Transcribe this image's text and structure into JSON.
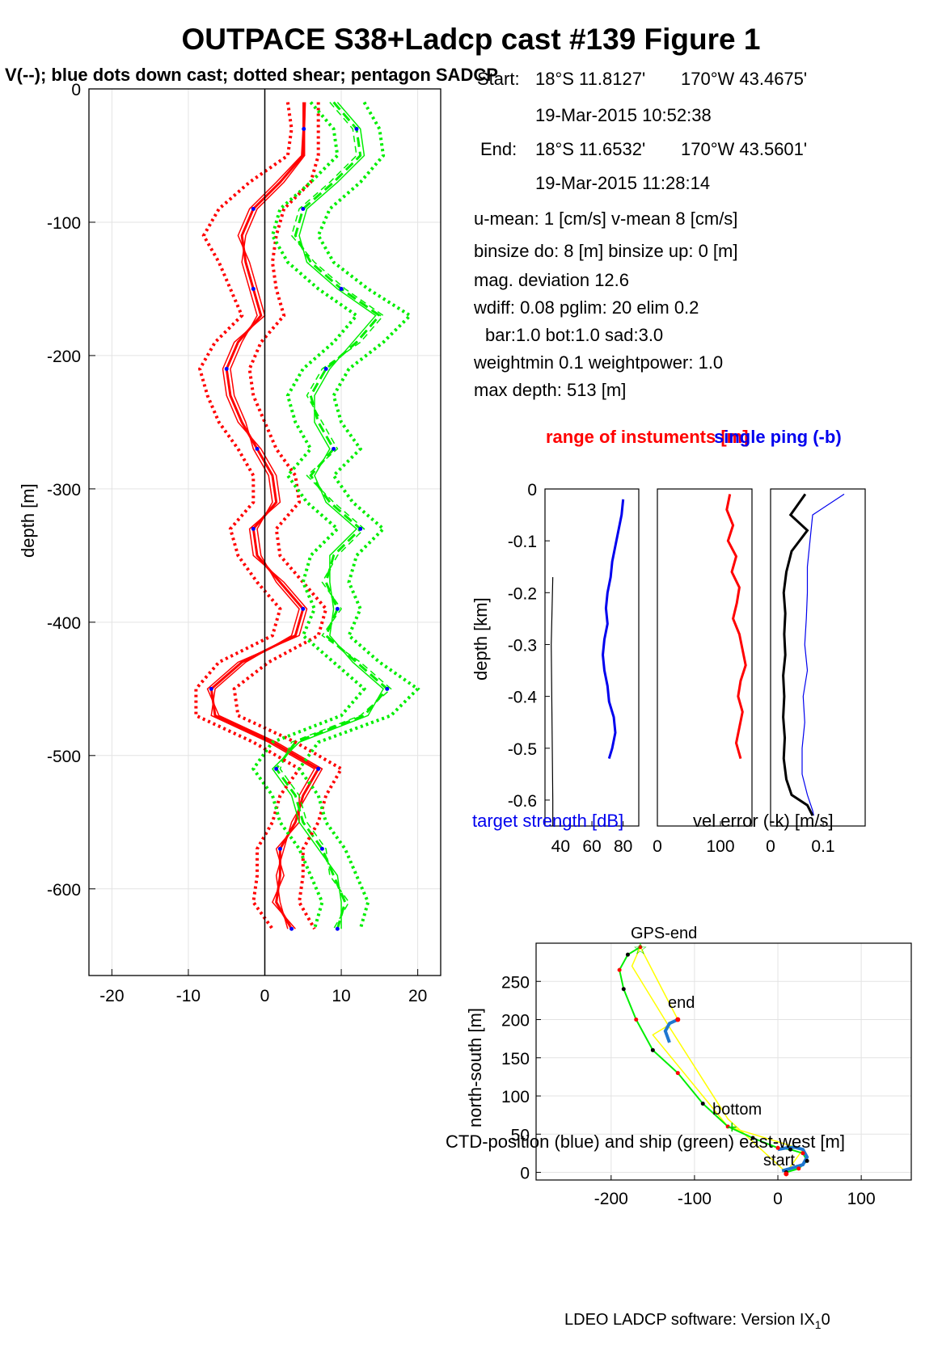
{
  "title": "OUTPACE S38+Ladcp cast #139  Figure 1",
  "subtitle": "V(--); blue dots down cast; dotted shear; pentagon SADCP",
  "info": {
    "start_label": "Start:",
    "start_lat": "18°S 11.8127'",
    "start_lon": "170°W 43.4675'",
    "start_time": "19-Mar-2015 10:52:38",
    "end_label": "End:",
    "end_lat": "18°S 11.6532'",
    "end_lon": "170°W 43.5601'",
    "end_time": "19-Mar-2015 11:28:14",
    "umean": "u-mean:   1 [cm/s]    v-mean   8 [cm/s]",
    "binsize": "binsize do: 8 [m]  binsize up:  0 [m]",
    "magdev": "mag. deviation 12.6",
    "wdiff": "wdiff: 0.08  pglim: 20  elim 0.2",
    "bar": "bar:1.0 bot:1.0 sad:3.0",
    "weight": "weightmin 0.1  weightpower: 1.0",
    "maxdepth": "max depth: 513 [m]"
  },
  "footer": "LDEO LADCP software: Version IX",
  "footer_sub": "1",
  "footer_tail": "0",
  "colors": {
    "u": "#ff0000",
    "v": "#00ee00",
    "dots": "#0000ff",
    "ts": "#0000ee",
    "range": "#ff0000",
    "gps": "#ffff00"
  },
  "chart_data": [
    {
      "type": "line",
      "ylabel": "depth [m]",
      "xlabel": "",
      "xlim": [
        -23,
        23
      ],
      "ylim": [
        -665,
        0
      ],
      "xticks": [
        "-20",
        "-10",
        "0",
        "10",
        "20"
      ],
      "yticks": [
        "0",
        "-100",
        "-200",
        "-300",
        "-400",
        "-500",
        "-600"
      ],
      "grid": true,
      "depth": [
        -10,
        -30,
        -50,
        -70,
        -90,
        -110,
        -130,
        -150,
        -170,
        -190,
        -210,
        -230,
        -250,
        -270,
        -290,
        -310,
        -330,
        -350,
        -370,
        -390,
        -410,
        -430,
        -450,
        -470,
        -490,
        -510,
        -530,
        -550,
        -570,
        -590,
        -610,
        -630
      ],
      "series": [
        {
          "values": [
            5.2,
            5.1,
            5.0,
            2.0,
            -1.5,
            -3.0,
            -2.5,
            -1.5,
            -0.5,
            -3.5,
            -5.0,
            -4.5,
            -3.0,
            -1.0,
            1.0,
            1.5,
            -1.5,
            -1.0,
            2.0,
            5.0,
            4.0,
            -3.0,
            -7.0,
            -6.5,
            1.0,
            7.0,
            5.0,
            4.0,
            2.0,
            2.0,
            1.5,
            3.5
          ]
        },
        {
          "values": [
            5.0,
            5.0,
            4.8,
            1.5,
            -2.0,
            -3.5,
            -2.0,
            -1.0,
            0.0,
            -4.0,
            -5.5,
            -5.0,
            -3.5,
            -0.5,
            1.5,
            2.0,
            -2.0,
            -1.5,
            2.5,
            5.5,
            4.5,
            -3.5,
            -7.5,
            -6.0,
            1.5,
            7.5,
            5.5,
            3.5,
            2.5,
            1.5,
            2.0,
            3.0
          ]
        },
        {
          "values": [
            5.3,
            5.2,
            5.2,
            2.5,
            -1.0,
            -2.5,
            -3.0,
            -2.0,
            -1.0,
            -3.0,
            -4.5,
            -4.0,
            -2.5,
            -1.5,
            0.5,
            1.0,
            -1.0,
            -0.5,
            1.5,
            4.5,
            3.5,
            -2.5,
            -6.5,
            -7.0,
            0.5,
            6.5,
            4.5,
            4.5,
            1.5,
            2.5,
            1.0,
            4.0
          ]
        },
        {
          "values": [
            9.0,
            12.0,
            12.5,
            9.0,
            5.0,
            4.0,
            6.0,
            10.0,
            15.0,
            12.0,
            8.0,
            6.0,
            7.0,
            9.0,
            6.0,
            8.5,
            12.5,
            9.0,
            8.0,
            9.5,
            8.0,
            12.0,
            16.0,
            13.0,
            4.0,
            1.5,
            4.0,
            5.0,
            7.5,
            9.0,
            10.5,
            9.5
          ]
        },
        {
          "values": [
            8.5,
            11.5,
            12.0,
            8.5,
            4.5,
            3.5,
            6.5,
            10.5,
            15.5,
            12.5,
            7.5,
            5.5,
            7.5,
            9.5,
            5.5,
            9.0,
            13.0,
            9.5,
            7.5,
            10.0,
            7.5,
            12.5,
            16.5,
            12.5,
            3.5,
            2.0,
            4.5,
            5.5,
            8.0,
            8.5,
            11.0,
            9.0
          ]
        },
        {
          "values": [
            9.5,
            12.5,
            13.0,
            9.5,
            5.5,
            4.5,
            5.5,
            9.5,
            14.5,
            11.5,
            8.5,
            6.5,
            6.5,
            8.5,
            6.5,
            8.0,
            12.0,
            8.5,
            8.5,
            9.0,
            8.5,
            11.5,
            15.5,
            13.5,
            4.5,
            1.0,
            3.5,
            4.5,
            7.0,
            9.5,
            10.0,
            10.0
          ]
        },
        {
          "values": [
            3.0,
            3.5,
            3.0,
            -2.0,
            -6.0,
            -8.0,
            -6.0,
            -4.5,
            -3.0,
            -6.5,
            -8.5,
            -7.5,
            -6.0,
            -3.5,
            -1.5,
            -1.5,
            -4.5,
            -3.5,
            -1.0,
            2.0,
            1.0,
            -6.0,
            -9.0,
            -9.0,
            -1.5,
            4.5,
            2.0,
            1.0,
            -1.0,
            -1.0,
            -1.5,
            1.0
          ]
        },
        {
          "values": [
            7.0,
            7.0,
            7.0,
            6.0,
            2.5,
            1.5,
            1.0,
            1.5,
            2.5,
            -0.5,
            -2.0,
            -1.5,
            0.0,
            1.5,
            4.0,
            4.5,
            1.5,
            2.0,
            5.0,
            8.0,
            7.0,
            0.5,
            -4.0,
            -3.5,
            4.0,
            10.0,
            8.0,
            7.0,
            5.0,
            5.0,
            4.5,
            6.5
          ]
        },
        {
          "values": [
            13.0,
            15.0,
            15.5,
            12.5,
            8.5,
            7.0,
            9.0,
            13.5,
            19.0,
            15.5,
            11.0,
            9.0,
            10.0,
            12.5,
            9.0,
            11.5,
            15.5,
            12.0,
            11.0,
            12.5,
            11.0,
            15.0,
            20.0,
            16.5,
            7.0,
            4.5,
            7.0,
            8.0,
            10.5,
            12.0,
            13.5,
            12.5
          ]
        },
        {
          "values": [
            6.0,
            9.0,
            9.5,
            6.0,
            2.0,
            1.0,
            3.0,
            7.0,
            12.0,
            9.0,
            5.0,
            3.0,
            4.0,
            6.0,
            3.0,
            5.5,
            9.5,
            6.0,
            5.0,
            6.5,
            5.0,
            9.0,
            13.0,
            10.0,
            1.0,
            -1.5,
            1.0,
            2.0,
            4.5,
            6.0,
            7.5,
            6.5
          ]
        }
      ]
    },
    {
      "type": "line",
      "title": "range of instuments [m]",
      "title2": "single ping (-b)",
      "ylabel": "depth [km]",
      "xlabel": "target strength [dB]",
      "xlabel2": "vel error (-k) [m/s]",
      "ylim": [
        -0.65,
        0
      ],
      "yticks": [
        "0",
        "-0.1",
        "-0.2",
        "-0.3",
        "-0.4",
        "-0.5",
        "-0.6"
      ],
      "panel1": {
        "xlim": [
          30,
          90
        ],
        "xticks": [
          "40",
          "60",
          "80"
        ],
        "grid": false,
        "target_strength": {
          "depth": [
            -0.02,
            -0.05,
            -0.08,
            -0.11,
            -0.14,
            -0.17,
            -0.2,
            -0.23,
            -0.26,
            -0.29,
            -0.32,
            -0.35,
            -0.38,
            -0.41,
            -0.44,
            -0.47,
            -0.5,
            -0.52
          ],
          "values": [
            80,
            79,
            77,
            75,
            73,
            72,
            70,
            69,
            70,
            68,
            67,
            68,
            70,
            71,
            74,
            75,
            73,
            71
          ]
        },
        "thin": {
          "depth": [
            -0.17,
            -0.3,
            -0.45,
            -0.6,
            -0.65
          ],
          "values": [
            35,
            34,
            34.5,
            35,
            35
          ]
        }
      },
      "panel2": {
        "xlim": [
          0,
          150
        ],
        "xticks": [
          "0",
          "100"
        ],
        "range": {
          "depth": [
            -0.01,
            -0.04,
            -0.07,
            -0.1,
            -0.13,
            -0.16,
            -0.19,
            -0.22,
            -0.25,
            -0.28,
            -0.31,
            -0.34,
            -0.37,
            -0.4,
            -0.43,
            -0.46,
            -0.49,
            -0.52
          ],
          "values": [
            115,
            110,
            120,
            112,
            125,
            118,
            130,
            126,
            120,
            130,
            135,
            140,
            132,
            128,
            135,
            130,
            125,
            132
          ]
        }
      },
      "panel3": {
        "xlim": [
          0,
          0.18
        ],
        "xticks": [
          "0",
          "0.1"
        ],
        "black": {
          "depth": [
            -0.01,
            -0.05,
            -0.08,
            -0.12,
            -0.16,
            -0.2,
            -0.24,
            -0.28,
            -0.32,
            -0.36,
            -0.4,
            -0.44,
            -0.48,
            -0.52,
            -0.56,
            -0.59,
            -0.61,
            -0.63
          ],
          "values": [
            0.066,
            0.038,
            0.07,
            0.04,
            0.03,
            0.025,
            0.028,
            0.026,
            0.028,
            0.024,
            0.026,
            0.024,
            0.027,
            0.025,
            0.03,
            0.04,
            0.07,
            0.08
          ]
        },
        "blue": {
          "depth": [
            -0.01,
            -0.05,
            -0.1,
            -0.15,
            -0.2,
            -0.25,
            -0.3,
            -0.35,
            -0.4,
            -0.45,
            -0.5,
            -0.55,
            -0.59,
            -0.62,
            -0.63
          ],
          "values": [
            0.14,
            0.08,
            0.075,
            0.07,
            0.07,
            0.068,
            0.065,
            0.07,
            0.062,
            0.065,
            0.06,
            0.06,
            0.07,
            0.08,
            0.082
          ]
        }
      }
    },
    {
      "type": "line",
      "xlabel": "CTD-position (blue) and ship (green) east-west [m]",
      "ylabel": "north-south [m]",
      "xlim": [
        -290,
        160
      ],
      "ylim": [
        -10,
        300
      ],
      "xticks": [
        "-200",
        "-100",
        "0",
        "100"
      ],
      "yticks": [
        "0",
        "50",
        "100",
        "150",
        "200",
        "250"
      ],
      "grid": true,
      "annotations": [
        "GPS-end",
        "end",
        "bottom",
        "start"
      ],
      "ctd": {
        "x": [
          5,
          15,
          30,
          35,
          30,
          20,
          10,
          0
        ],
        "y": [
          2,
          5,
          10,
          20,
          30,
          33,
          32,
          30
        ]
      },
      "ctd_end": {
        "x": [
          -120,
          -130,
          -135,
          -130
        ],
        "y": [
          200,
          195,
          185,
          170
        ]
      },
      "ship": {
        "x": [
          10,
          25,
          35,
          30,
          15,
          0,
          -30,
          -60,
          -90,
          -120,
          -150,
          -170,
          -185,
          -190,
          -180,
          -165
        ],
        "y": [
          0,
          5,
          15,
          25,
          30,
          32,
          45,
          60,
          90,
          130,
          160,
          200,
          240,
          265,
          285,
          295
        ]
      },
      "gps": {
        "x": [
          -165,
          -120,
          -150,
          -60,
          30,
          10,
          -60,
          -130,
          -175,
          -165
        ],
        "y": [
          295,
          200,
          180,
          60,
          30,
          0,
          70,
          190,
          270,
          295
        ]
      }
    }
  ]
}
